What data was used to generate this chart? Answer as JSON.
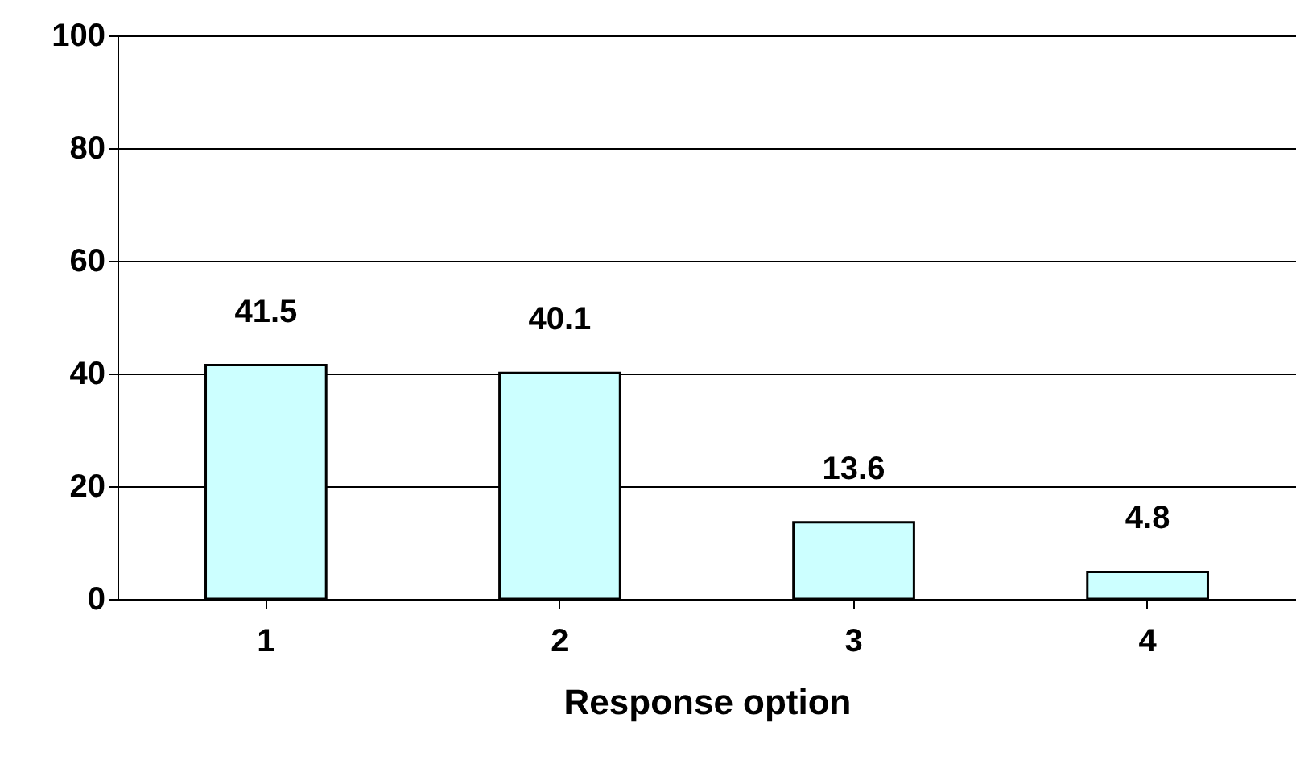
{
  "chart_data": {
    "type": "bar",
    "xlabel": "Response option",
    "categories": [
      "1",
      "2",
      "3",
      "4"
    ],
    "values": [
      41.5,
      40.1,
      13.6,
      4.8
    ],
    "color": "#ccffff",
    "ylim": [
      0,
      100
    ],
    "yticks": [
      0,
      20,
      40,
      60,
      80,
      100
    ],
    "grid": "y",
    "data_labels": true
  }
}
